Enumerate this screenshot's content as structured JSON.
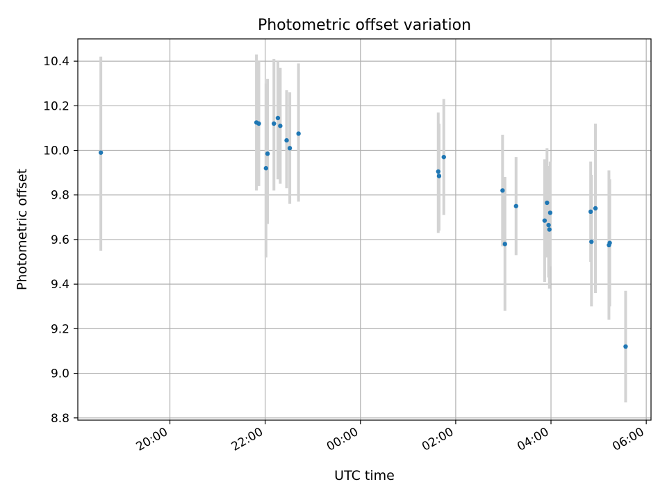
{
  "chart_data": {
    "type": "scatter",
    "title": "Photometric offset variation",
    "xlabel": "UTC time",
    "ylabel": "Photometric offset",
    "x_axis": {
      "kind": "time",
      "range": [
        "2024-01-01T18:04:00Z",
        "2024-01-02T06:06:00Z"
      ],
      "ticks": [
        {
          "value": "2024-01-01T20:00:00Z",
          "label": "20:00"
        },
        {
          "value": "2024-01-01T22:00:00Z",
          "label": "22:00"
        },
        {
          "value": "2024-01-02T00:00:00Z",
          "label": "00:00"
        },
        {
          "value": "2024-01-02T02:00:00Z",
          "label": "02:00"
        },
        {
          "value": "2024-01-02T04:00:00Z",
          "label": "04:00"
        },
        {
          "value": "2024-01-02T06:00:00Z",
          "label": "06:00"
        }
      ]
    },
    "y_axis": {
      "range": [
        8.79,
        10.5
      ],
      "ticks": [
        "8.8",
        "9.0",
        "9.2",
        "9.4",
        "9.6",
        "9.8",
        "10.0",
        "10.2",
        "10.4"
      ]
    },
    "grid": true,
    "colors": {
      "points": "#1f77b4",
      "errorbars": "#d3d3d3",
      "grid": "#b0b0b0"
    },
    "series": [
      {
        "points": [
          {
            "t": "2024-01-01T18:33:00Z",
            "y": 9.99,
            "lo": 9.55,
            "hi": 10.42
          },
          {
            "t": "2024-01-01T21:49:00Z",
            "y": 10.125,
            "lo": 9.82,
            "hi": 10.43
          },
          {
            "t": "2024-01-01T21:52:00Z",
            "y": 10.12,
            "lo": 9.84,
            "hi": 10.4
          },
          {
            "t": "2024-01-01T22:01:00Z",
            "y": 9.92,
            "lo": 9.52,
            "hi": 10.3
          },
          {
            "t": "2024-01-01T22:03:00Z",
            "y": 9.985,
            "lo": 9.67,
            "hi": 10.32
          },
          {
            "t": "2024-01-01T22:11:00Z",
            "y": 10.12,
            "lo": 9.82,
            "hi": 10.41
          },
          {
            "t": "2024-01-01T22:16:00Z",
            "y": 10.145,
            "lo": 9.87,
            "hi": 10.4
          },
          {
            "t": "2024-01-01T22:19:00Z",
            "y": 10.11,
            "lo": 9.85,
            "hi": 10.37
          },
          {
            "t": "2024-01-01T22:27:00Z",
            "y": 10.045,
            "lo": 9.83,
            "hi": 10.27
          },
          {
            "t": "2024-01-01T22:31:00Z",
            "y": 10.01,
            "lo": 9.76,
            "hi": 10.26
          },
          {
            "t": "2024-01-01T22:42:00Z",
            "y": 10.075,
            "lo": 9.77,
            "hi": 10.39
          },
          {
            "t": "2024-01-02T01:38:00Z",
            "y": 9.905,
            "lo": 9.63,
            "hi": 10.17
          },
          {
            "t": "2024-01-02T01:39:00Z",
            "y": 9.885,
            "lo": 9.64,
            "hi": 10.12
          },
          {
            "t": "2024-01-02T01:45:00Z",
            "y": 9.97,
            "lo": 9.71,
            "hi": 10.23
          },
          {
            "t": "2024-01-02T02:59:00Z",
            "y": 9.82,
            "lo": 9.57,
            "hi": 10.07
          },
          {
            "t": "2024-01-02T03:02:00Z",
            "y": 9.58,
            "lo": 9.28,
            "hi": 9.88
          },
          {
            "t": "2024-01-02T03:16:00Z",
            "y": 9.75,
            "lo": 9.53,
            "hi": 9.97
          },
          {
            "t": "2024-01-02T03:52:00Z",
            "y": 9.685,
            "lo": 9.41,
            "hi": 9.96
          },
          {
            "t": "2024-01-02T03:55:00Z",
            "y": 9.765,
            "lo": 9.52,
            "hi": 10.01
          },
          {
            "t": "2024-01-02T03:57:00Z",
            "y": 9.665,
            "lo": 9.43,
            "hi": 9.92
          },
          {
            "t": "2024-01-02T03:58:00Z",
            "y": 9.645,
            "lo": 9.38,
            "hi": 9.93
          },
          {
            "t": "2024-01-02T03:59:00Z",
            "y": 9.72,
            "lo": 9.48,
            "hi": 9.95
          },
          {
            "t": "2024-01-02T04:50:00Z",
            "y": 9.725,
            "lo": 9.5,
            "hi": 9.95
          },
          {
            "t": "2024-01-02T04:51:00Z",
            "y": 9.59,
            "lo": 9.3,
            "hi": 9.89
          },
          {
            "t": "2024-01-02T04:56:00Z",
            "y": 9.74,
            "lo": 9.36,
            "hi": 10.12
          },
          {
            "t": "2024-01-02T05:13:00Z",
            "y": 9.575,
            "lo": 9.24,
            "hi": 9.91
          },
          {
            "t": "2024-01-02T05:14:00Z",
            "y": 9.585,
            "lo": 9.3,
            "hi": 9.87
          },
          {
            "t": "2024-01-02T05:34:00Z",
            "y": 9.12,
            "lo": 8.87,
            "hi": 9.37
          }
        ]
      }
    ]
  }
}
